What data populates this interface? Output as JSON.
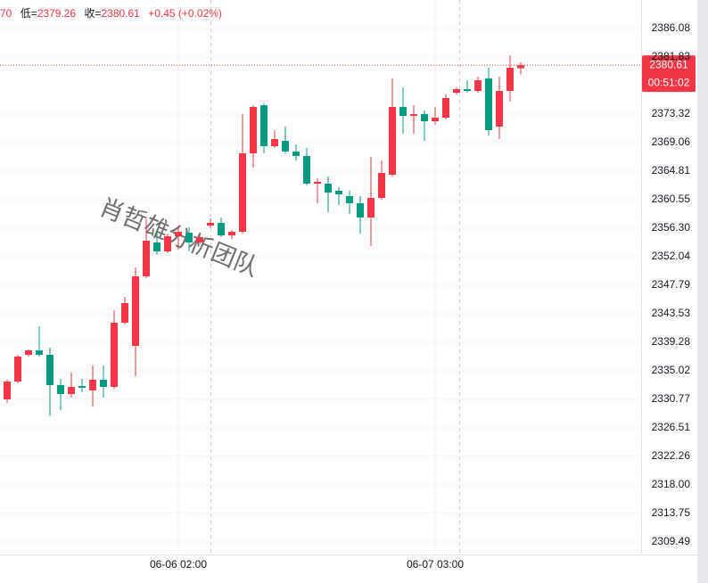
{
  "chart_data": {
    "type": "candlestick",
    "header": {
      "high_fragment": "70",
      "low_label": "低=",
      "low_value": "2379.26",
      "close_label": "收=",
      "close_value": "2380.61",
      "change": "+0.45 (+0.02%)"
    },
    "watermark": "肖哲雄分析团队",
    "countdown": "00:51:02",
    "categories": [
      null,
      null,
      null,
      null,
      null,
      null,
      null,
      null,
      null,
      null,
      null,
      null,
      null,
      null,
      null,
      null,
      "06-06 02:00",
      null,
      null,
      null,
      null,
      null,
      null,
      null,
      null,
      null,
      null,
      null,
      null,
      null,
      null,
      null,
      null,
      null,
      null,
      null,
      null,
      null,
      null,
      null,
      "06-07 03:00",
      null,
      null,
      null,
      null,
      null,
      null,
      null,
      null
    ],
    "open": [
      2330.76,
      2333.42,
      2337.41,
      2338.07,
      2337.41,
      2332.89,
      2331.56,
      2332.76,
      2332.09,
      2333.69,
      2332.62,
      2342.2,
      2338.74,
      2349.11,
      2354.16,
      2352.84,
      2355.1,
      2355.63,
      2354.16,
      2356.69,
      2357.09,
      2355.23,
      2355.76,
      2367.46,
      2374.64,
      2368.53,
      2369.32,
      2367.73,
      2367.06,
      2362.94,
      2362.94,
      2361.88,
      2361.08,
      2360.02,
      2357.89,
      2360.81,
      2364.27,
      2374.38,
      2373.05,
      2373.31,
      2372.25,
      2372.78,
      2376.51,
      2377.04,
      2376.77,
      2378.63,
      2371.45,
      2376.77,
      2380.16
    ],
    "high": [
      2333.69,
      2337.41,
      2338.21,
      2341.66,
      2338.47,
      2333.82,
      2334.75,
      2333.82,
      2335.81,
      2335.81,
      2344.06,
      2346.05,
      2350.44,
      2357.62,
      2356.03,
      2355.49,
      2356.56,
      2356.43,
      2355.36,
      2357.76,
      2357.89,
      2356.03,
      2373.31,
      2374.64,
      2374.91,
      2370.92,
      2371.45,
      2368.79,
      2368.26,
      2363.74,
      2364.01,
      2362.41,
      2361.88,
      2361.08,
      2366.93,
      2366.4,
      2378.63,
      2377.3,
      2374.64,
      2373.85,
      2374.38,
      2376.24,
      2377.3,
      2378.37,
      2378.9,
      2380.23,
      2378.9,
      2382.09,
      2381.03
    ],
    "low": [
      2330.23,
      2333.15,
      2337.14,
      2337.14,
      2328.23,
      2329.16,
      2331.03,
      2331.82,
      2329.7,
      2331.03,
      2332.36,
      2341.93,
      2334.22,
      2348.85,
      2352.3,
      2352.57,
      2353.1,
      2352.84,
      2353.9,
      2356.29,
      2354.96,
      2354.7,
      2355.49,
      2365.34,
      2367.46,
      2368.26,
      2367.46,
      2366.4,
      2362.68,
      2360.02,
      2358.69,
      2359.75,
      2358.42,
      2355.49,
      2353.63,
      2360.55,
      2364.01,
      2370.39,
      2370.39,
      2369.32,
      2371.72,
      2372.52,
      2376.24,
      2376.51,
      2376.51,
      2370.12,
      2369.59,
      2375.18,
      2379.26
    ],
    "close": [
      2333.42,
      2337.14,
      2338.07,
      2337.41,
      2332.89,
      2331.56,
      2332.62,
      2332.49,
      2333.69,
      2332.62,
      2342.2,
      2345.12,
      2349.11,
      2354.43,
      2352.84,
      2355.1,
      2355.76,
      2354.16,
      2354.96,
      2357.09,
      2355.23,
      2355.76,
      2367.46,
      2374.38,
      2368.53,
      2369.59,
      2367.73,
      2367.06,
      2362.94,
      2363.21,
      2361.61,
      2361.35,
      2360.02,
      2357.89,
      2360.81,
      2364.54,
      2374.38,
      2373.05,
      2373.31,
      2372.25,
      2372.78,
      2375.71,
      2377.04,
      2376.77,
      2378.37,
      2370.92,
      2376.77,
      2380.23,
      2380.61
    ],
    "up_color": "#f23645",
    "down_color": "#089981",
    "ylim": [
      2307.62,
      2390.34
    ],
    "yticks": [
      2386.08,
      2381.83,
      2373.32,
      2369.06,
      2364.81,
      2360.55,
      2356.3,
      2352.04,
      2347.79,
      2343.53,
      2339.28,
      2335.02,
      2330.77,
      2326.51,
      2322.26,
      2318,
      2313.75,
      2309.49
    ],
    "ytick_labels": [
      "2386.08",
      "2381.83",
      "2373.32",
      "2369.06",
      "2364.81",
      "2360.55",
      "2356.30",
      "2352.04",
      "2347.79",
      "2343.53",
      "2339.28",
      "2335.02",
      "2330.77",
      "2326.51",
      "2322.26",
      "2318.00",
      "2313.75",
      "2309.49"
    ],
    "grid": true
  }
}
